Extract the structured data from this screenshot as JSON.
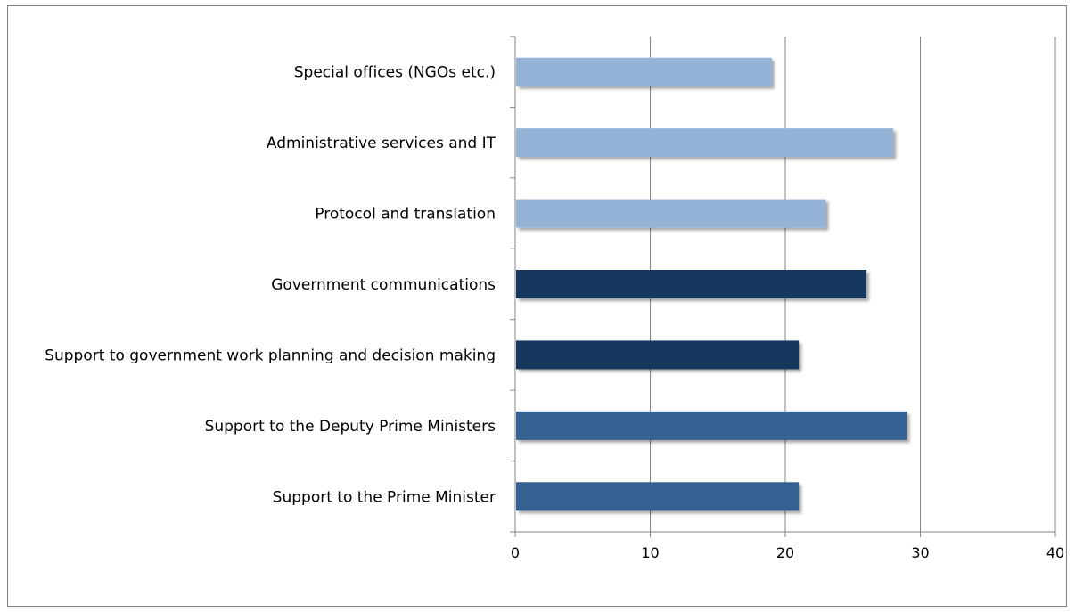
{
  "chart_data": {
    "type": "bar",
    "orientation": "horizontal",
    "categories": [
      "Special offices (NGOs etc.)",
      "Administrative services and IT",
      "Protocol and translation",
      "Government communications",
      "Support to government work planning and decision making",
      "Support to the Deputy Prime Ministers",
      "Support to the Prime Minister"
    ],
    "values": [
      19,
      28,
      23,
      26,
      21,
      29,
      21
    ],
    "colors": [
      "#95b3d7",
      "#95b3d7",
      "#95b3d7",
      "#17375e",
      "#17375e",
      "#366092",
      "#366092"
    ],
    "xlim": [
      0,
      40
    ],
    "xticks": [
      "0",
      "10",
      "20",
      "30",
      "40"
    ],
    "grid": true,
    "legend": "none"
  }
}
